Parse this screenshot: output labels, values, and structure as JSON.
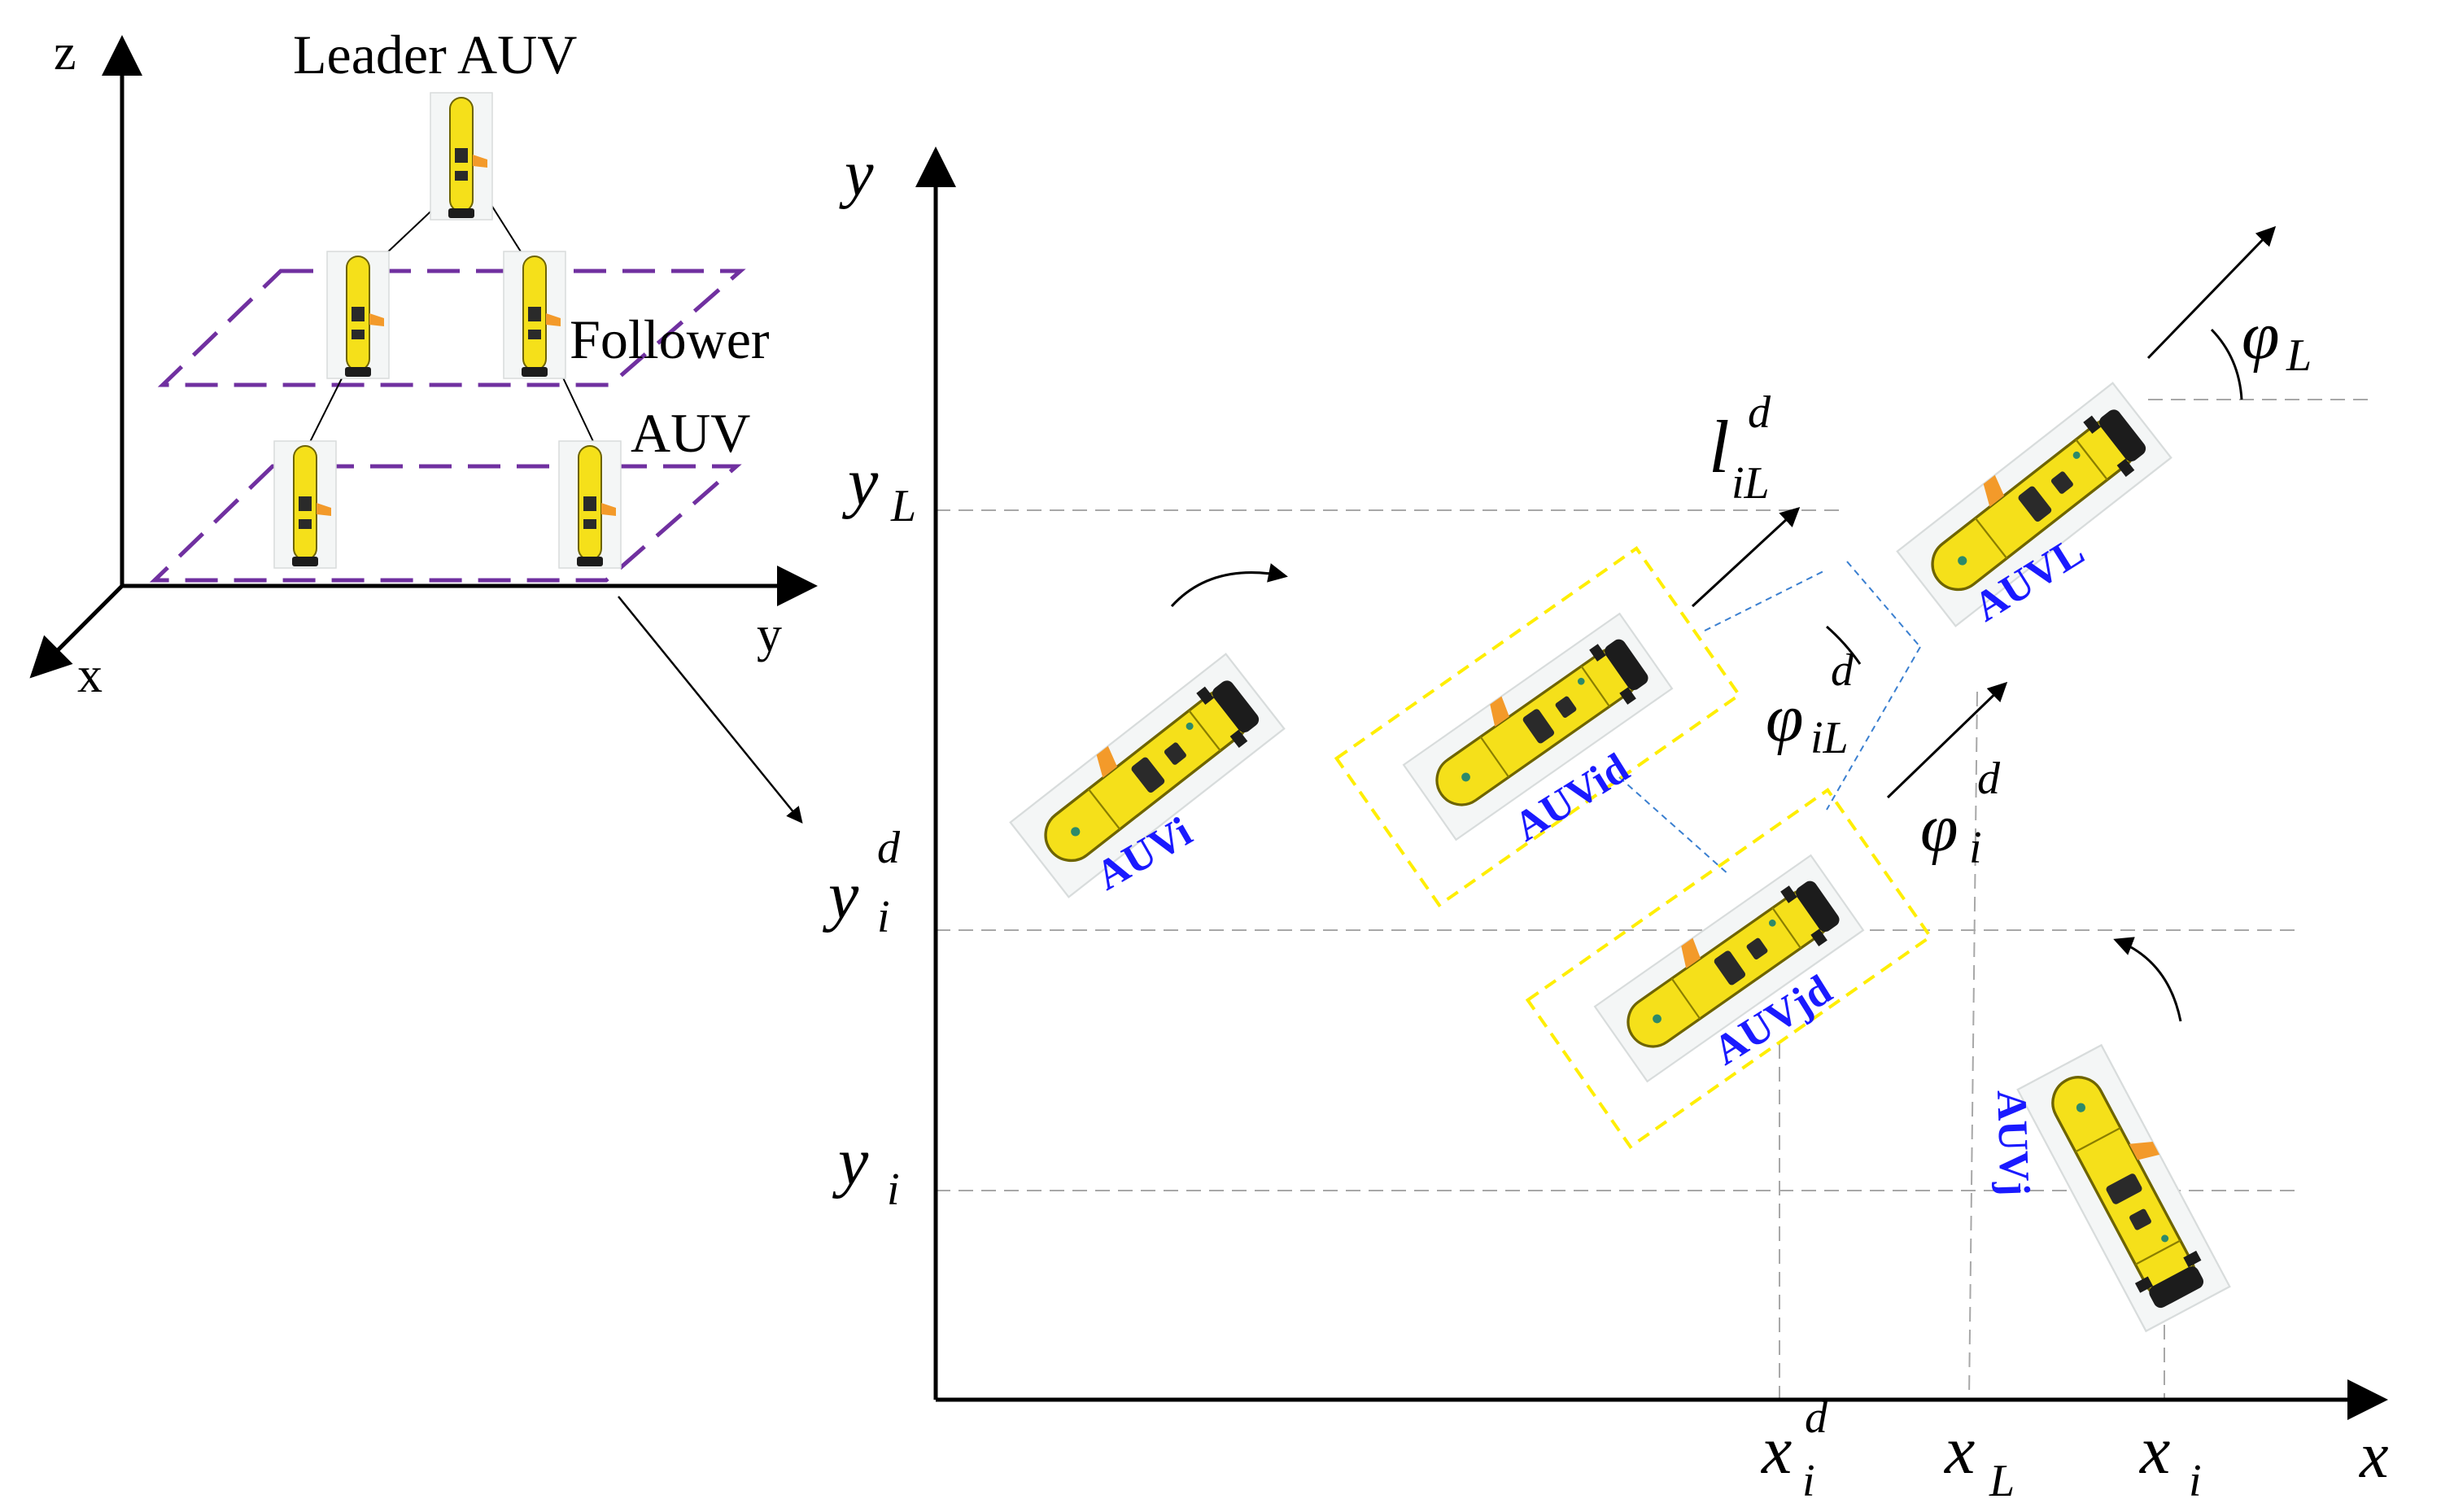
{
  "left_panel": {
    "axis_z": "z",
    "axis_x": "x",
    "axis_y": "y",
    "leader_label": "Leader AUV",
    "follower_label_line1": "Follower",
    "follower_label_line2": "AUV"
  },
  "main_plot": {
    "axis_y": "y",
    "axis_x": "x",
    "y_ticks": {
      "yL_base": "y",
      "yL_sub": "L",
      "yid_base": "y",
      "yid_sub": "i",
      "yid_sup": "d",
      "yi_base": "y",
      "yi_sub": "i"
    },
    "x_ticks": {
      "xid_base": "x",
      "xid_sub": "i",
      "xid_sup": "d",
      "xL_base": "x",
      "xL_sub": "L",
      "xi_base": "x",
      "xi_sub": "i"
    },
    "symbols": {
      "phiL_base": "φ",
      "phiL_sub": "L",
      "lid_base": "l",
      "lid_sub": "iL",
      "lid_sup": "d",
      "phiiL_base": "φ",
      "phiiL_sub": "iL",
      "phiiL_sup": "d",
      "phii_base": "φ",
      "phii_sub": "i",
      "phii_sup": "d"
    },
    "auv_labels": {
      "auvi": "AUVi",
      "auvid": "AUVid",
      "auvl": "AUVL",
      "auvjd": "AUVjd",
      "auvj": "AUVj"
    }
  },
  "colors": {
    "auv_body": "#f5e01a",
    "auv_label": "#1a1aff",
    "formation_plane": "#7030a0",
    "target_box": "#ffee00",
    "link_line": "#3a7fd0",
    "guide_line": "#a8a8a8"
  }
}
